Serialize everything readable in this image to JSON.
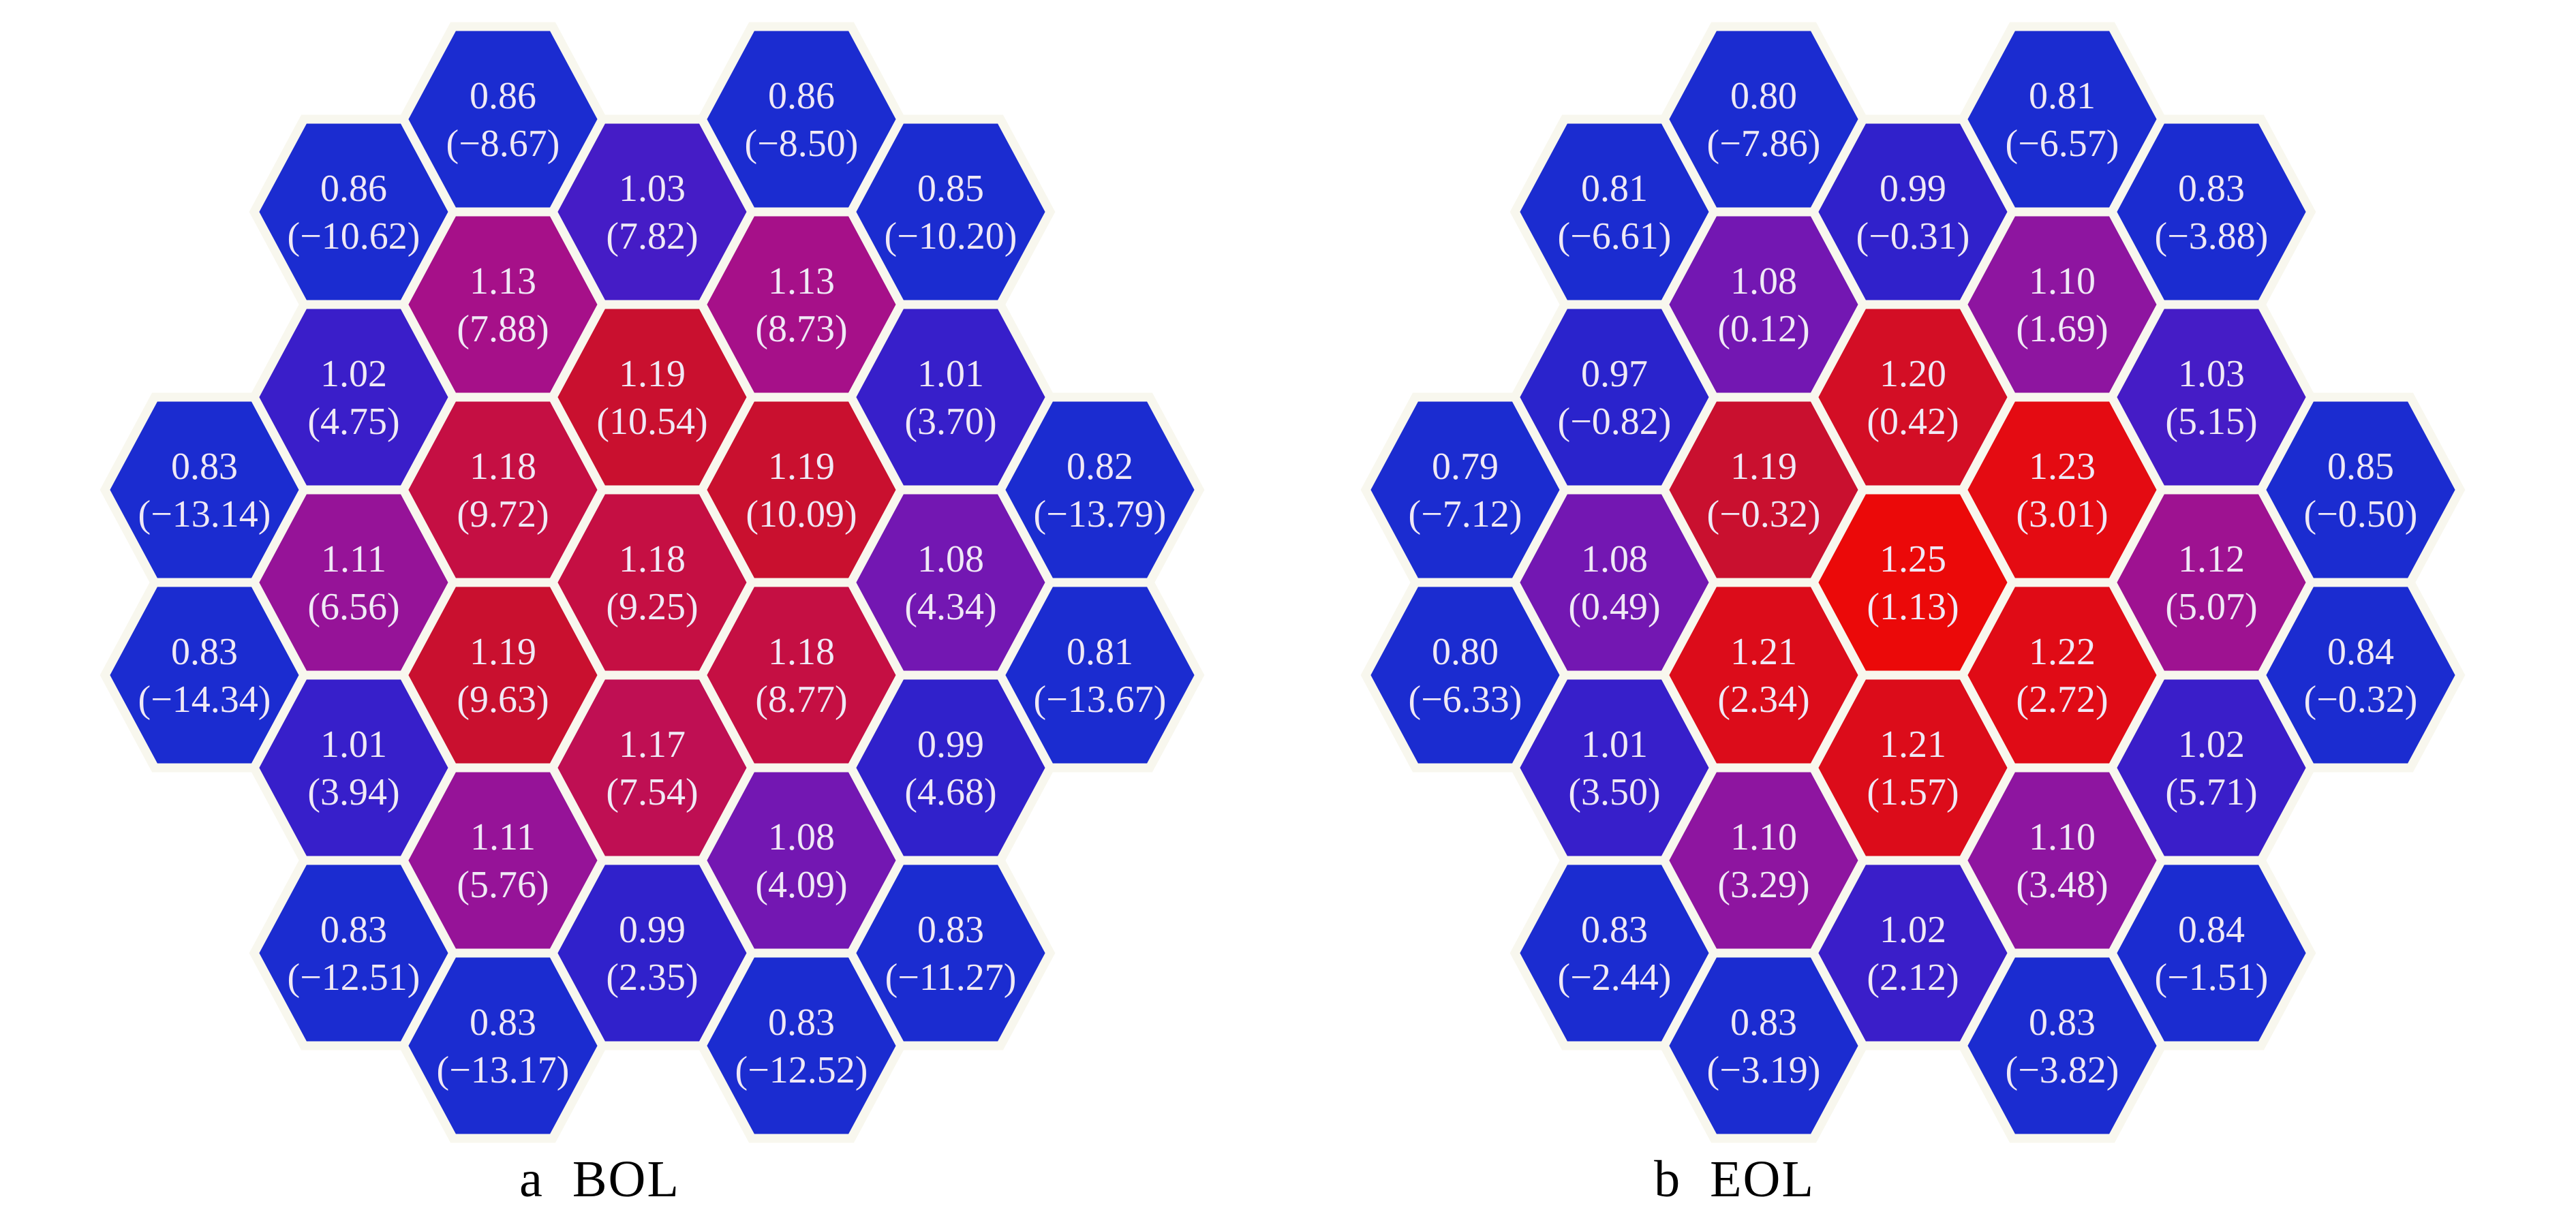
{
  "figure": {
    "background": "#ffffff",
    "hex_text_color": "#f0e9f6",
    "hex_border_color": "#f8f7ee",
    "caption_color": "#000000"
  },
  "chart_data": {
    "type": "heatmap",
    "subtype": "hexagonal-reactor-core-map",
    "description": "Two hexagonal assembly maps of power peaking factors; top number is the assembly value, number in parentheses is the relative deviation (%)",
    "grid": "31 hexagonal cells per panel arranged in 7 columns of 2/5/6/5/6/5/2",
    "legend_position": "none",
    "color_scale": {
      "domain": [
        0.79,
        1.25
      ],
      "anchors": [
        [
          0.86,
          "#1B2CD0"
        ],
        [
          0.97,
          "#2A23CC"
        ],
        [
          1.02,
          "#3A1EC9"
        ],
        [
          1.05,
          "#5A18BF"
        ],
        [
          1.08,
          "#7317B2"
        ],
        [
          1.1,
          "#8E15A0"
        ],
        [
          1.13,
          "#A61089"
        ],
        [
          1.16,
          "#B90F62"
        ],
        [
          1.18,
          "#C50F43"
        ],
        [
          1.19,
          "#C9102F"
        ],
        [
          1.21,
          "#DC0C1A"
        ],
        [
          1.25,
          "#EB0909"
        ]
      ]
    },
    "panels": [
      {
        "caption": "a  BOL",
        "cells": [
          {
            "col": 0,
            "row": 2,
            "value": 0.83,
            "dev": -13.14
          },
          {
            "col": 0,
            "row": 3,
            "value": 0.83,
            "dev": -14.34
          },
          {
            "col": 1,
            "row": 0.5,
            "value": 0.86,
            "dev": -10.62
          },
          {
            "col": 1,
            "row": 1.5,
            "value": 1.02,
            "dev": 4.75
          },
          {
            "col": 1,
            "row": 2.5,
            "value": 1.11,
            "dev": 6.56
          },
          {
            "col": 1,
            "row": 3.5,
            "value": 1.01,
            "dev": 3.94
          },
          {
            "col": 1,
            "row": 4.5,
            "value": 0.83,
            "dev": -12.51
          },
          {
            "col": 2,
            "row": 0,
            "value": 0.86,
            "dev": -8.67
          },
          {
            "col": 2,
            "row": 1,
            "value": 1.13,
            "dev": 7.88
          },
          {
            "col": 2,
            "row": 2,
            "value": 1.18,
            "dev": 9.72
          },
          {
            "col": 2,
            "row": 3,
            "value": 1.19,
            "dev": 9.63
          },
          {
            "col": 2,
            "row": 4,
            "value": 1.11,
            "dev": 5.76
          },
          {
            "col": 2,
            "row": 5,
            "value": 0.83,
            "dev": -13.17
          },
          {
            "col": 3,
            "row": 0.5,
            "value": 1.03,
            "dev": 7.82
          },
          {
            "col": 3,
            "row": 1.5,
            "value": 1.19,
            "dev": 10.54
          },
          {
            "col": 3,
            "row": 2.5,
            "value": 1.18,
            "dev": 9.25
          },
          {
            "col": 3,
            "row": 3.5,
            "value": 1.17,
            "dev": 7.54
          },
          {
            "col": 3,
            "row": 4.5,
            "value": 0.99,
            "dev": 2.35
          },
          {
            "col": 4,
            "row": 0,
            "value": 0.86,
            "dev": -8.5
          },
          {
            "col": 4,
            "row": 1,
            "value": 1.13,
            "dev": 8.73
          },
          {
            "col": 4,
            "row": 2,
            "value": 1.19,
            "dev": 10.09
          },
          {
            "col": 4,
            "row": 3,
            "value": 1.18,
            "dev": 8.77
          },
          {
            "col": 4,
            "row": 4,
            "value": 1.08,
            "dev": 4.09
          },
          {
            "col": 4,
            "row": 5,
            "value": 0.83,
            "dev": -12.52
          },
          {
            "col": 5,
            "row": 0.5,
            "value": 0.85,
            "dev": -10.2
          },
          {
            "col": 5,
            "row": 1.5,
            "value": 1.01,
            "dev": 3.7
          },
          {
            "col": 5,
            "row": 2.5,
            "value": 1.08,
            "dev": 4.34
          },
          {
            "col": 5,
            "row": 3.5,
            "value": 0.99,
            "dev": 4.68
          },
          {
            "col": 5,
            "row": 4.5,
            "value": 0.83,
            "dev": -11.27
          },
          {
            "col": 6,
            "row": 2,
            "value": 0.82,
            "dev": -13.79
          },
          {
            "col": 6,
            "row": 3,
            "value": 0.81,
            "dev": -13.67
          }
        ]
      },
      {
        "caption": "b  EOL",
        "cells": [
          {
            "col": 0,
            "row": 2,
            "value": 0.79,
            "dev": -7.12
          },
          {
            "col": 0,
            "row": 3,
            "value": 0.8,
            "dev": -6.33
          },
          {
            "col": 1,
            "row": 0.5,
            "value": 0.81,
            "dev": -6.61
          },
          {
            "col": 1,
            "row": 1.5,
            "value": 0.97,
            "dev": -0.82
          },
          {
            "col": 1,
            "row": 2.5,
            "value": 1.08,
            "dev": 0.49
          },
          {
            "col": 1,
            "row": 3.5,
            "value": 1.01,
            "dev": 3.5
          },
          {
            "col": 1,
            "row": 4.5,
            "value": 0.83,
            "dev": -2.44
          },
          {
            "col": 2,
            "row": 0,
            "value": 0.8,
            "dev": -7.86
          },
          {
            "col": 2,
            "row": 1,
            "value": 1.08,
            "dev": 0.12
          },
          {
            "col": 2,
            "row": 2,
            "value": 1.19,
            "dev": -0.32
          },
          {
            "col": 2,
            "row": 3,
            "value": 1.21,
            "dev": 2.34
          },
          {
            "col": 2,
            "row": 4,
            "value": 1.1,
            "dev": 3.29
          },
          {
            "col": 2,
            "row": 5,
            "value": 0.83,
            "dev": -3.19
          },
          {
            "col": 3,
            "row": 0.5,
            "value": 0.99,
            "dev": -0.31
          },
          {
            "col": 3,
            "row": 1.5,
            "value": 1.2,
            "dev": 0.42
          },
          {
            "col": 3,
            "row": 2.5,
            "value": 1.25,
            "dev": 1.13
          },
          {
            "col": 3,
            "row": 3.5,
            "value": 1.21,
            "dev": 1.57
          },
          {
            "col": 3,
            "row": 4.5,
            "value": 1.02,
            "dev": 2.12
          },
          {
            "col": 4,
            "row": 0,
            "value": 0.81,
            "dev": -6.57
          },
          {
            "col": 4,
            "row": 1,
            "value": 1.1,
            "dev": 1.69
          },
          {
            "col": 4,
            "row": 2,
            "value": 1.23,
            "dev": 3.01
          },
          {
            "col": 4,
            "row": 3,
            "value": 1.22,
            "dev": 2.72
          },
          {
            "col": 4,
            "row": 4,
            "value": 1.1,
            "dev": 3.48
          },
          {
            "col": 4,
            "row": 5,
            "value": 0.83,
            "dev": -3.82
          },
          {
            "col": 5,
            "row": 0.5,
            "value": 0.83,
            "dev": -3.88
          },
          {
            "col": 5,
            "row": 1.5,
            "value": 1.03,
            "dev": 5.15
          },
          {
            "col": 5,
            "row": 2.5,
            "value": 1.12,
            "dev": 5.07
          },
          {
            "col": 5,
            "row": 3.5,
            "value": 1.02,
            "dev": 5.71
          },
          {
            "col": 5,
            "row": 4.5,
            "value": 0.84,
            "dev": -1.51
          },
          {
            "col": 6,
            "row": 2,
            "value": 0.85,
            "dev": -0.5
          },
          {
            "col": 6,
            "row": 3,
            "value": 0.84,
            "dev": -0.32
          }
        ]
      }
    ]
  }
}
